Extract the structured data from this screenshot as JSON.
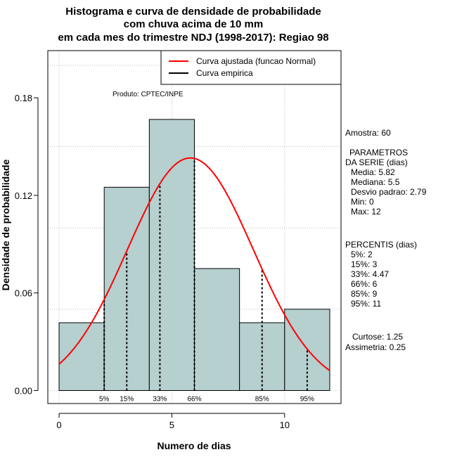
{
  "chart_data": {
    "type": "bar",
    "title_lines": [
      "Histograma e curva de densidade de probabilidade",
      "com chuva acima de 10 mm",
      "em cada mes do trimestre NDJ (1998-2017): Regiao 98"
    ],
    "xlabel": "Numero de dias",
    "ylabel": "Densidade de probabilidade",
    "xlim": [
      -0.5,
      12.5
    ],
    "ylim": [
      -0.008,
      0.209
    ],
    "x_ticks": [
      0,
      5,
      10
    ],
    "y_ticks": [
      0.0,
      0.06,
      0.12,
      0.18
    ],
    "y_tick_labels": [
      "0.00",
      "0.06",
      "0.12",
      "0.18"
    ],
    "grid_x": [
      0,
      5,
      10
    ],
    "grid_y": [
      0.0,
      0.05,
      0.1,
      0.15,
      0.2
    ],
    "bins": [
      {
        "from": 0,
        "to": 2,
        "density": 0.0417
      },
      {
        "from": 2,
        "to": 4,
        "density": 0.125
      },
      {
        "from": 4,
        "to": 6,
        "density": 0.1667
      },
      {
        "from": 6,
        "to": 8,
        "density": 0.075
      },
      {
        "from": 8,
        "to": 10,
        "density": 0.0417
      },
      {
        "from": 10,
        "to": 12,
        "density": 0.05
      }
    ],
    "normal_fit": {
      "mean": 5.82,
      "sd": 2.79,
      "from": 0,
      "to": 12,
      "color": "#ff0000"
    },
    "percentile_lines": [
      {
        "label": "5%",
        "x": 2
      },
      {
        "label": "15%",
        "x": 3
      },
      {
        "label": "33%",
        "x": 4.47
      },
      {
        "label": "66%",
        "x": 6
      },
      {
        "label": "85%",
        "x": 9
      },
      {
        "label": "95%",
        "x": 11
      }
    ],
    "legend": [
      {
        "label": "Curva ajustada (funcao Normal)",
        "color": "#ff0000"
      },
      {
        "label": "Curva empirica",
        "color": "#000000"
      }
    ],
    "legend_position": "top-right",
    "annotation": "Produto: CPTEC/INPE",
    "bar_color": "#b6cfcf",
    "side_panel": [
      "Amostra: 60",
      "PARAMETROS",
      "DA SERIE (dias)",
      "Media: 5.82",
      "Mediana: 5.5",
      "Desvio padrao: 2.79",
      "Min: 0",
      "Max: 12",
      "PERCENTIS (dias)",
      "5%: 2",
      "15%: 3",
      "33%: 4.47",
      "66%: 6",
      "85%: 9",
      "95%: 11",
      "Curtose: 1.25",
      "Assimetria: 0.25"
    ]
  }
}
